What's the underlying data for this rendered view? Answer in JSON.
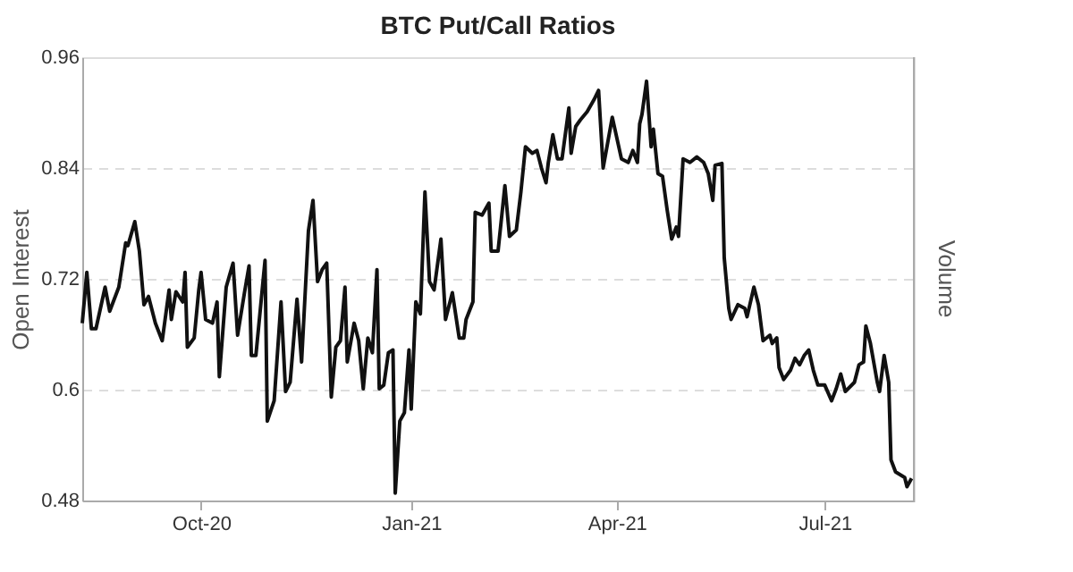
{
  "chart_data": {
    "type": "line",
    "title": "BTC Put/Call Ratios",
    "ylabel": "Open Interest",
    "y2label": "Volume",
    "xlim": [
      "2020-08-10",
      "2021-08-09"
    ],
    "xticks": [
      {
        "value": "2020-10-01",
        "label": "Oct-20"
      },
      {
        "value": "2021-01-01",
        "label": "Jan-21"
      },
      {
        "value": "2021-04-01",
        "label": "Apr-21"
      },
      {
        "value": "2021-07-01",
        "label": "Jul-21"
      }
    ],
    "ylim": [
      0.48,
      0.96
    ],
    "yticks": [
      0.48,
      0.6,
      0.72,
      0.84,
      0.96
    ],
    "grid": "y",
    "x": [
      "2020-08-10",
      "2020-08-12",
      "2020-08-14",
      "2020-08-16",
      "2020-08-20",
      "2020-08-22",
      "2020-08-26",
      "2020-08-29",
      "2020-08-30",
      "2020-09-02",
      "2020-09-04",
      "2020-09-06",
      "2020-09-08",
      "2020-09-11",
      "2020-09-14",
      "2020-09-17",
      "2020-09-18",
      "2020-09-20",
      "2020-09-23",
      "2020-09-24",
      "2020-09-25",
      "2020-09-28",
      "2020-09-30",
      "2020-10-01",
      "2020-10-03",
      "2020-10-06",
      "2020-10-08",
      "2020-10-09",
      "2020-10-12",
      "2020-10-15",
      "2020-10-17",
      "2020-10-20",
      "2020-10-22",
      "2020-10-23",
      "2020-10-25",
      "2020-10-29",
      "2020-10-30",
      "2020-11-02",
      "2020-11-05",
      "2020-11-07",
      "2020-11-09",
      "2020-11-12",
      "2020-11-14",
      "2020-11-17",
      "2020-11-19",
      "2020-11-21",
      "2020-11-23",
      "2020-11-25",
      "2020-11-27",
      "2020-11-29",
      "2020-12-01",
      "2020-12-03",
      "2020-12-04",
      "2020-12-07",
      "2020-12-09",
      "2020-12-11",
      "2020-12-13",
      "2020-12-15",
      "2020-12-17",
      "2020-12-18",
      "2020-12-20",
      "2020-12-22",
      "2020-12-24",
      "2020-12-25",
      "2020-12-27",
      "2020-12-29",
      "2020-12-31",
      "2021-01-01",
      "2021-01-03",
      "2021-01-05",
      "2021-01-07",
      "2021-01-09",
      "2021-01-11",
      "2021-01-14",
      "2021-01-16",
      "2021-01-19",
      "2021-01-22",
      "2021-01-24",
      "2021-01-25",
      "2021-01-28",
      "2021-01-29",
      "2021-02-01",
      "2021-02-04",
      "2021-02-05",
      "2021-02-08",
      "2021-02-11",
      "2021-02-13",
      "2021-02-16",
      "2021-02-18",
      "2021-02-20",
      "2021-02-23",
      "2021-02-25",
      "2021-02-27",
      "2021-03-01",
      "2021-03-02",
      "2021-03-04",
      "2021-03-06",
      "2021-03-08",
      "2021-03-11",
      "2021-03-12",
      "2021-03-14",
      "2021-03-16",
      "2021-03-19",
      "2021-03-22",
      "2021-03-24",
      "2021-03-26",
      "2021-03-30",
      "2021-04-03",
      "2021-04-06",
      "2021-04-08",
      "2021-04-10",
      "2021-04-11",
      "2021-04-12",
      "2021-04-14",
      "2021-04-16",
      "2021-04-17",
      "2021-04-19",
      "2021-04-21",
      "2021-04-23",
      "2021-04-25",
      "2021-04-27",
      "2021-04-28",
      "2021-04-30",
      "2021-05-03",
      "2021-05-06",
      "2021-05-09",
      "2021-05-11",
      "2021-05-13",
      "2021-05-14",
      "2021-05-17",
      "2021-05-18",
      "2021-05-20",
      "2021-05-21",
      "2021-05-24",
      "2021-05-27",
      "2021-05-28",
      "2021-05-31",
      "2021-06-02",
      "2021-06-04",
      "2021-06-07",
      "2021-06-08",
      "2021-06-10",
      "2021-06-11",
      "2021-06-13",
      "2021-06-16",
      "2021-06-18",
      "2021-06-20",
      "2021-06-22",
      "2021-06-24",
      "2021-06-26",
      "2021-06-28",
      "2021-07-01",
      "2021-07-04",
      "2021-07-06",
      "2021-07-08",
      "2021-07-10",
      "2021-07-14",
      "2021-07-16",
      "2021-07-18",
      "2021-07-19",
      "2021-07-21",
      "2021-07-24",
      "2021-07-25",
      "2021-07-27",
      "2021-07-29",
      "2021-07-30",
      "2021-08-01",
      "2021-08-05",
      "2021-08-06",
      "2021-08-08"
    ],
    "series": [
      {
        "color": "#111111",
        "line_style": "solid",
        "marker": "none",
        "values": [
          0.672,
          0.727,
          0.666,
          0.666,
          0.711,
          0.685,
          0.711,
          0.759,
          0.756,
          0.782,
          0.75,
          0.692,
          0.701,
          0.672,
          0.653,
          0.708,
          0.676,
          0.706,
          0.695,
          0.727,
          0.646,
          0.656,
          0.708,
          0.727,
          0.676,
          0.672,
          0.695,
          0.614,
          0.711,
          0.737,
          0.659,
          0.705,
          0.734,
          0.637,
          0.637,
          0.74,
          0.566,
          0.588,
          0.695,
          0.598,
          0.608,
          0.698,
          0.63,
          0.772,
          0.805,
          0.717,
          0.73,
          0.737,
          0.592,
          0.646,
          0.653,
          0.711,
          0.63,
          0.672,
          0.653,
          0.601,
          0.656,
          0.64,
          0.73,
          0.601,
          0.605,
          0.64,
          0.643,
          0.488,
          0.566,
          0.575,
          0.643,
          0.579,
          0.695,
          0.682,
          0.814,
          0.717,
          0.708,
          0.763,
          0.676,
          0.705,
          0.656,
          0.656,
          0.676,
          0.695,
          0.792,
          0.789,
          0.802,
          0.75,
          0.75,
          0.821,
          0.766,
          0.773,
          0.814,
          0.863,
          0.856,
          0.859,
          0.84,
          0.824,
          0.846,
          0.876,
          0.85,
          0.85,
          0.905,
          0.856,
          0.885,
          0.892,
          0.901,
          0.914,
          0.924,
          0.84,
          0.895,
          0.85,
          0.846,
          0.859,
          0.846,
          0.888,
          0.898,
          0.934,
          0.863,
          0.882,
          0.834,
          0.831,
          0.795,
          0.763,
          0.776,
          0.766,
          0.85,
          0.846,
          0.852,
          0.846,
          0.834,
          0.805,
          0.843,
          0.845,
          0.743,
          0.688,
          0.676,
          0.692,
          0.688,
          0.679,
          0.711,
          0.692,
          0.653,
          0.659,
          0.65,
          0.656,
          0.624,
          0.611,
          0.621,
          0.634,
          0.627,
          0.637,
          0.643,
          0.621,
          0.605,
          0.605,
          0.588,
          0.601,
          0.617,
          0.598,
          0.608,
          0.627,
          0.63,
          0.669,
          0.65,
          0.608,
          0.598,
          0.637,
          0.608,
          0.524,
          0.511,
          0.505,
          0.495,
          0.504
        ]
      }
    ]
  }
}
